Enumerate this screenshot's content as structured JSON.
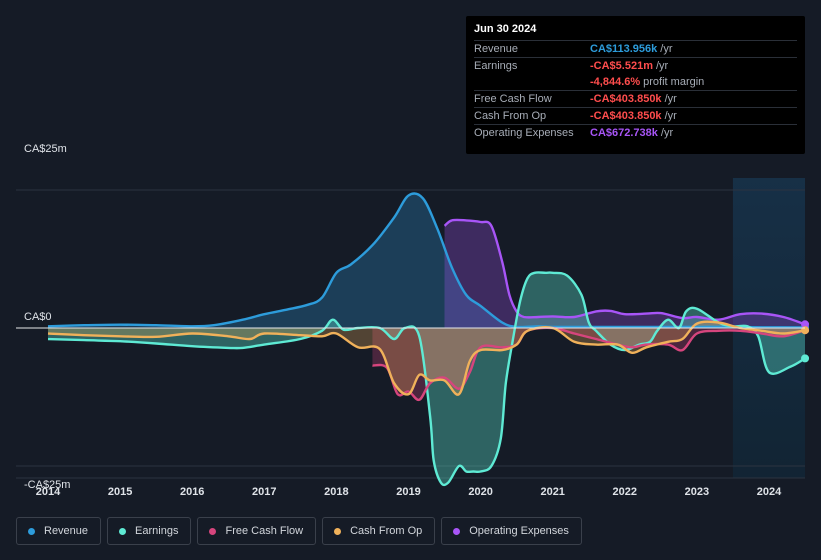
{
  "tooltip": {
    "date": "Jun 30 2024",
    "rows": [
      {
        "label": "Revenue",
        "value": "CA$113.956k",
        "unit": "/yr",
        "color": "#2d9cdb"
      },
      {
        "label": "Earnings",
        "value": "-CA$5.521m",
        "unit": "/yr",
        "color": "#ff4d4d"
      },
      {
        "label": "",
        "value": "-4,844.6%",
        "unit": "profit margin",
        "color": "#ff4d4d"
      },
      {
        "label": "Free Cash Flow",
        "value": "-CA$403.850k",
        "unit": "/yr",
        "color": "#ff4d4d"
      },
      {
        "label": "Cash From Op",
        "value": "-CA$403.850k",
        "unit": "/yr",
        "color": "#ff4d4d"
      },
      {
        "label": "Operating Expenses",
        "value": "CA$672.738k",
        "unit": "/yr",
        "color": "#a855f7"
      }
    ]
  },
  "legend": [
    {
      "label": "Revenue",
      "color": "#2d9cdb"
    },
    {
      "label": "Earnings",
      "color": "#5eead4"
    },
    {
      "label": "Free Cash Flow",
      "color": "#d6457d"
    },
    {
      "label": "Cash From Op",
      "color": "#f0b15a"
    },
    {
      "label": "Operating Expenses",
      "color": "#a855f7"
    }
  ],
  "chart_data": {
    "type": "area",
    "title": "",
    "y_unit": "CA$m",
    "ylim": [
      -25,
      25
    ],
    "xlim": [
      2013.9,
      2024.5
    ],
    "y_tick_labels": [
      {
        "value": 25,
        "label": "CA$25m"
      },
      {
        "value": 0,
        "label": "CA$0"
      },
      {
        "value": -25,
        "label": "-CA$25m"
      }
    ],
    "x_ticks": [
      2014,
      2015,
      2016,
      2017,
      2018,
      2019,
      2020,
      2021,
      2022,
      2023,
      2024
    ],
    "highlight_range": [
      2023.5,
      2024.5
    ],
    "series": [
      {
        "name": "Revenue",
        "color": "#2d9cdb",
        "x": [
          2014,
          2014.5,
          2015,
          2015.5,
          2016,
          2016.3,
          2016.7,
          2017,
          2017.3,
          2017.6,
          2017.8,
          2018,
          2018.2,
          2018.5,
          2018.8,
          2019,
          2019.2,
          2019.4,
          2019.6,
          2019.8,
          2020,
          2020.3,
          2020.5,
          2020.8,
          2021,
          2021.5,
          2022,
          2022.5,
          2023,
          2023.5,
          2024,
          2024.5
        ],
        "values": [
          0.3,
          0.5,
          0.6,
          0.5,
          0.3,
          0.5,
          1.5,
          2.5,
          3.3,
          4.2,
          5.5,
          10,
          11.5,
          15,
          20,
          24,
          23.5,
          18,
          11,
          6,
          4,
          1,
          0.2,
          0.3,
          0.2,
          0.2,
          0.2,
          0.2,
          0.2,
          0.2,
          0.12,
          0.11
        ]
      },
      {
        "name": "Earnings",
        "color": "#5eead4",
        "x": [
          2014,
          2014.5,
          2015,
          2015.5,
          2016,
          2016.5,
          2016.7,
          2017,
          2017.5,
          2017.8,
          2017.95,
          2018.1,
          2018.3,
          2018.6,
          2018.8,
          2018.95,
          2019.15,
          2019.3,
          2019.35,
          2019.45,
          2019.55,
          2019.7,
          2019.8,
          2019.9,
          2020,
          2020.15,
          2020.28,
          2020.35,
          2020.45,
          2020.55,
          2020.65,
          2020.75,
          2020.9,
          2021,
          2021.2,
          2021.4,
          2021.5,
          2021.6,
          2021.8,
          2022,
          2022.2,
          2022.35,
          2022.45,
          2022.6,
          2022.75,
          2022.85,
          2023,
          2023.3,
          2023.5,
          2023.7,
          2023.85,
          2024,
          2024.3,
          2024.5
        ],
        "values": [
          -2,
          -2.2,
          -2.4,
          -2.8,
          -3.3,
          -3.6,
          -3.6,
          -3,
          -2,
          -0.5,
          1.5,
          -0.3,
          0,
          0,
          -2,
          0,
          -1.5,
          -16,
          -24,
          -28,
          -28,
          -25,
          -26,
          -26,
          -26,
          -25,
          -20,
          -10,
          -2,
          5,
          9,
          10,
          10,
          10,
          9.5,
          6,
          1,
          -0.5,
          -3,
          -4,
          -3,
          -2.5,
          -0.5,
          1.5,
          0,
          3,
          3.5,
          1,
          0.3,
          0.3,
          -1.5,
          -8,
          -7,
          -5.5
        ]
      },
      {
        "name": "Free Cash Flow",
        "color": "#d6457d",
        "x": [
          2018.5,
          2018.7,
          2018.85,
          2019,
          2019.15,
          2019.3,
          2019.5,
          2019.7,
          2019.85,
          2020,
          2020.3,
          2020.5,
          2020.65,
          2021,
          2021.3,
          2021.6,
          2021.9,
          2022.1,
          2022.3,
          2022.6,
          2022.8,
          2023,
          2023.3,
          2023.6,
          2023.9,
          2024.2,
          2024.5
        ],
        "values": [
          -6.8,
          -7.2,
          -12,
          -11.5,
          -13,
          -10,
          -9,
          -11,
          -8,
          -3.5,
          -3.5,
          -3,
          -0.5,
          0,
          -1,
          -2,
          -3,
          -3.5,
          -3,
          -3,
          -4,
          -1,
          -0.5,
          -0.5,
          -1,
          -1.5,
          -0.4
        ]
      },
      {
        "name": "Cash From Op",
        "color": "#f0b15a",
        "x": [
          2014,
          2014.5,
          2015,
          2015.5,
          2016,
          2016.5,
          2016.8,
          2017,
          2017.5,
          2017.8,
          2018,
          2018.3,
          2018.6,
          2018.8,
          2019,
          2019.15,
          2019.3,
          2019.5,
          2019.7,
          2019.85,
          2020,
          2020.3,
          2020.5,
          2020.65,
          2021,
          2021.3,
          2021.6,
          2021.9,
          2022.1,
          2022.3,
          2022.6,
          2022.8,
          2023,
          2023.3,
          2023.6,
          2023.9,
          2024.2,
          2024.5
        ],
        "values": [
          -1,
          -1.3,
          -1.5,
          -1.6,
          -1,
          -1.5,
          -2,
          -1,
          -1.3,
          -1.5,
          -1,
          -3.5,
          -3.8,
          -10,
          -12,
          -8.5,
          -9.5,
          -9.5,
          -12,
          -6,
          -4,
          -4,
          -3,
          -0.5,
          0,
          -2.5,
          -3,
          -3,
          -4.5,
          -3.5,
          -2.5,
          -2,
          0.8,
          1,
          0,
          -0.5,
          -1,
          -0.4
        ]
      },
      {
        "name": "Operating Expenses",
        "color": "#a855f7",
        "x": [
          2019.5,
          2019.6,
          2019.8,
          2020,
          2020.15,
          2020.3,
          2020.4,
          2020.5,
          2020.6,
          2020.8,
          2021,
          2021.3,
          2021.6,
          2021.8,
          2022,
          2022.3,
          2022.5,
          2022.8,
          2023,
          2023.3,
          2023.6,
          2023.9,
          2024.2,
          2024.5
        ],
        "values": [
          18.5,
          19.5,
          19.5,
          19.2,
          18.5,
          12,
          6,
          3,
          2,
          2,
          2.1,
          2,
          3,
          3.1,
          2.5,
          2.6,
          2.7,
          1.8,
          2,
          1.5,
          2.5,
          2.6,
          2,
          0.67
        ]
      }
    ]
  }
}
